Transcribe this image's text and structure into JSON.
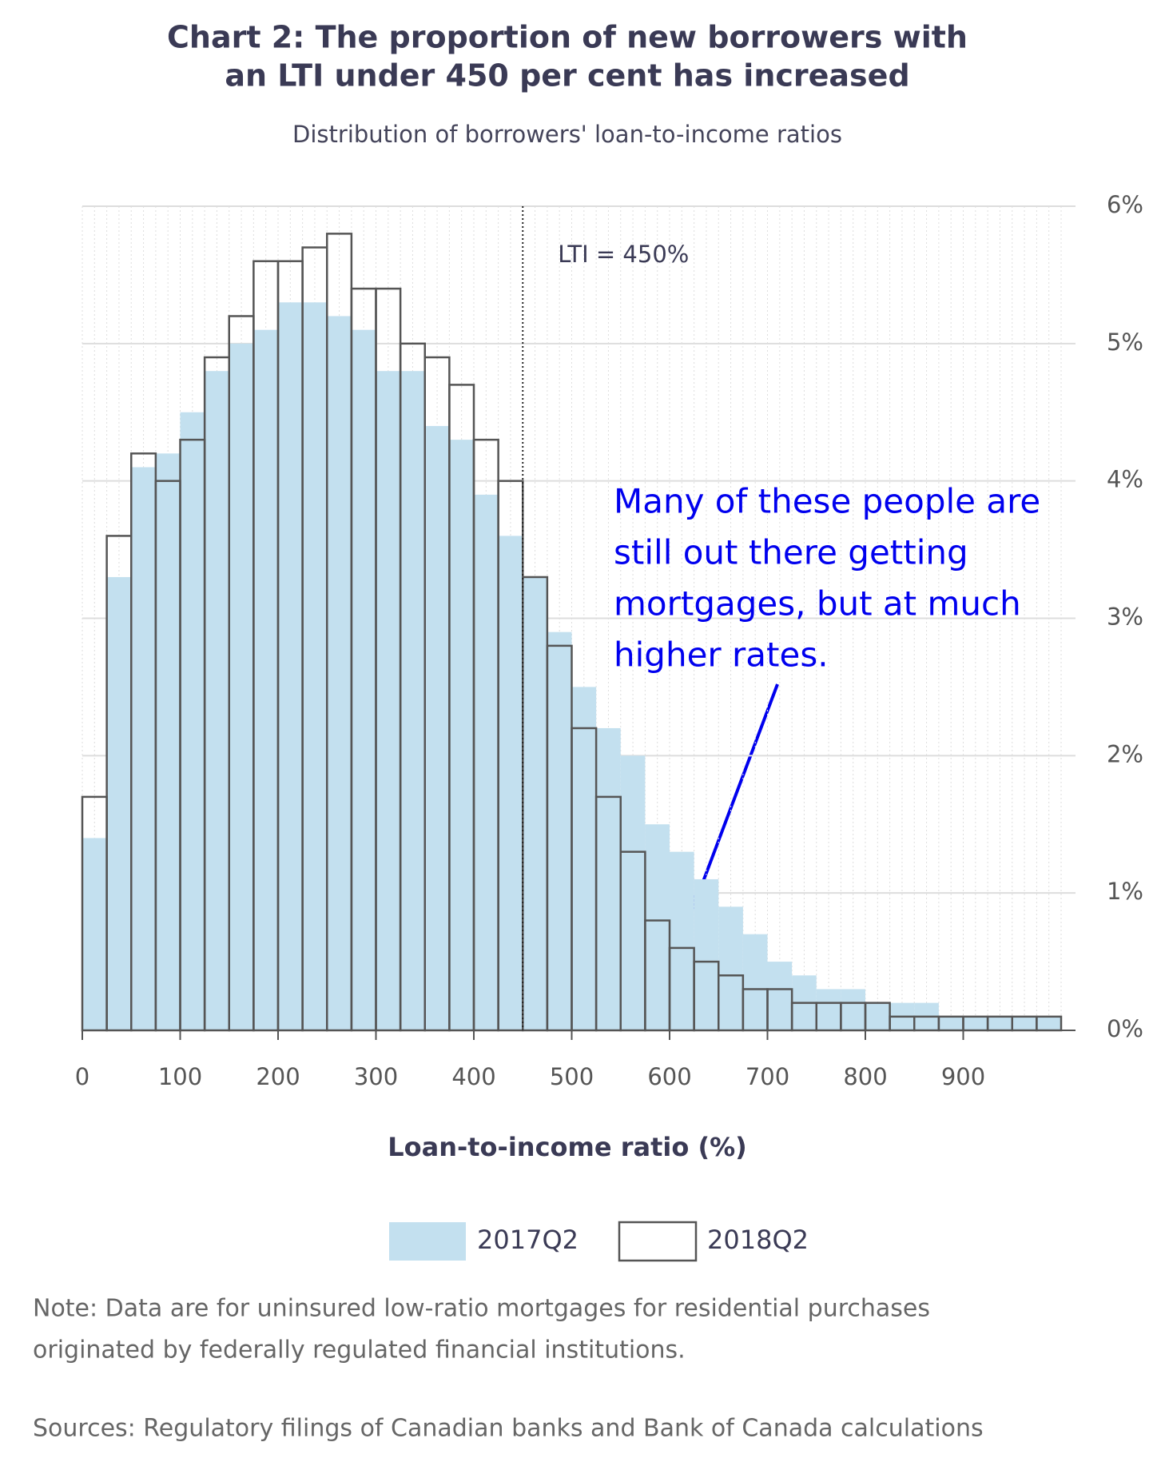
{
  "chart_data": {
    "type": "histogram",
    "title": [
      "Chart 2: The proportion of new borrowers with",
      "an LTI under 450 per cent has increased"
    ],
    "subtitle": "Distribution of borrowers' loan-to-income ratios",
    "x_label": "Loan-to-income ratio (%)",
    "bins": [
      0,
      25,
      50,
      75,
      100,
      125,
      150,
      175,
      200,
      225,
      250,
      275,
      300,
      325,
      350,
      375,
      400,
      425,
      450,
      475,
      500,
      525,
      550,
      575,
      600,
      625,
      650,
      675,
      700,
      725,
      750,
      775,
      800,
      825,
      850,
      875,
      900,
      925,
      950,
      975,
      1000
    ],
    "series": [
      {
        "name": "2017Q2",
        "color": "#c3e0ef",
        "style": "filled",
        "values": [
          1.4,
          3.3,
          4.1,
          4.2,
          4.5,
          4.8,
          5.0,
          5.1,
          5.3,
          5.3,
          5.2,
          5.1,
          4.8,
          4.8,
          4.4,
          4.3,
          3.9,
          3.6,
          3.3,
          2.9,
          2.5,
          2.2,
          2.0,
          1.5,
          1.3,
          1.1,
          0.9,
          0.7,
          0.5,
          0.4,
          0.3,
          0.3,
          0.2,
          0.2,
          0.2,
          0.1,
          0.1,
          0.1,
          0.1,
          0.1
        ]
      },
      {
        "name": "2018Q2",
        "color": "#555555",
        "style": "outline",
        "values": [
          1.7,
          3.6,
          4.2,
          4.0,
          4.3,
          4.9,
          5.2,
          5.6,
          5.6,
          5.7,
          5.8,
          5.4,
          5.4,
          5.0,
          4.9,
          4.7,
          4.3,
          4.0,
          3.3,
          2.8,
          2.2,
          1.7,
          1.3,
          0.8,
          0.6,
          0.5,
          0.4,
          0.3,
          0.3,
          0.2,
          0.2,
          0.2,
          0.2,
          0.1,
          0.1,
          0.1,
          0.1,
          0.1,
          0.1,
          0.1
        ]
      }
    ],
    "xlim": [
      0,
      1000
    ],
    "xticks": [
      0,
      100,
      200,
      300,
      400,
      500,
      600,
      700,
      800,
      900
    ],
    "ylim": [
      0,
      6
    ],
    "yticks": [
      {
        "value": 0,
        "label": "0%"
      },
      {
        "value": 1,
        "label": "1%"
      },
      {
        "value": 2,
        "label": "2%"
      },
      {
        "value": 3,
        "label": "3%"
      },
      {
        "value": 4,
        "label": "4%"
      },
      {
        "value": 5,
        "label": "5%"
      },
      {
        "value": 6,
        "label": "6%"
      }
    ],
    "y_axis_side": "right",
    "grid": true,
    "vline": {
      "x": 450,
      "label": "LTI = 450%"
    },
    "annotation": [
      "Many of these people are",
      "still out there getting",
      "mortgages, but at much",
      "higher rates."
    ],
    "note": [
      "Note: Data are for uninsured low-ratio mortgages for residential purchases",
      "originated by federally regulated financial institutions."
    ],
    "sources": "Sources: Regulatory filings of Canadian banks and Bank of Canada calculations"
  }
}
